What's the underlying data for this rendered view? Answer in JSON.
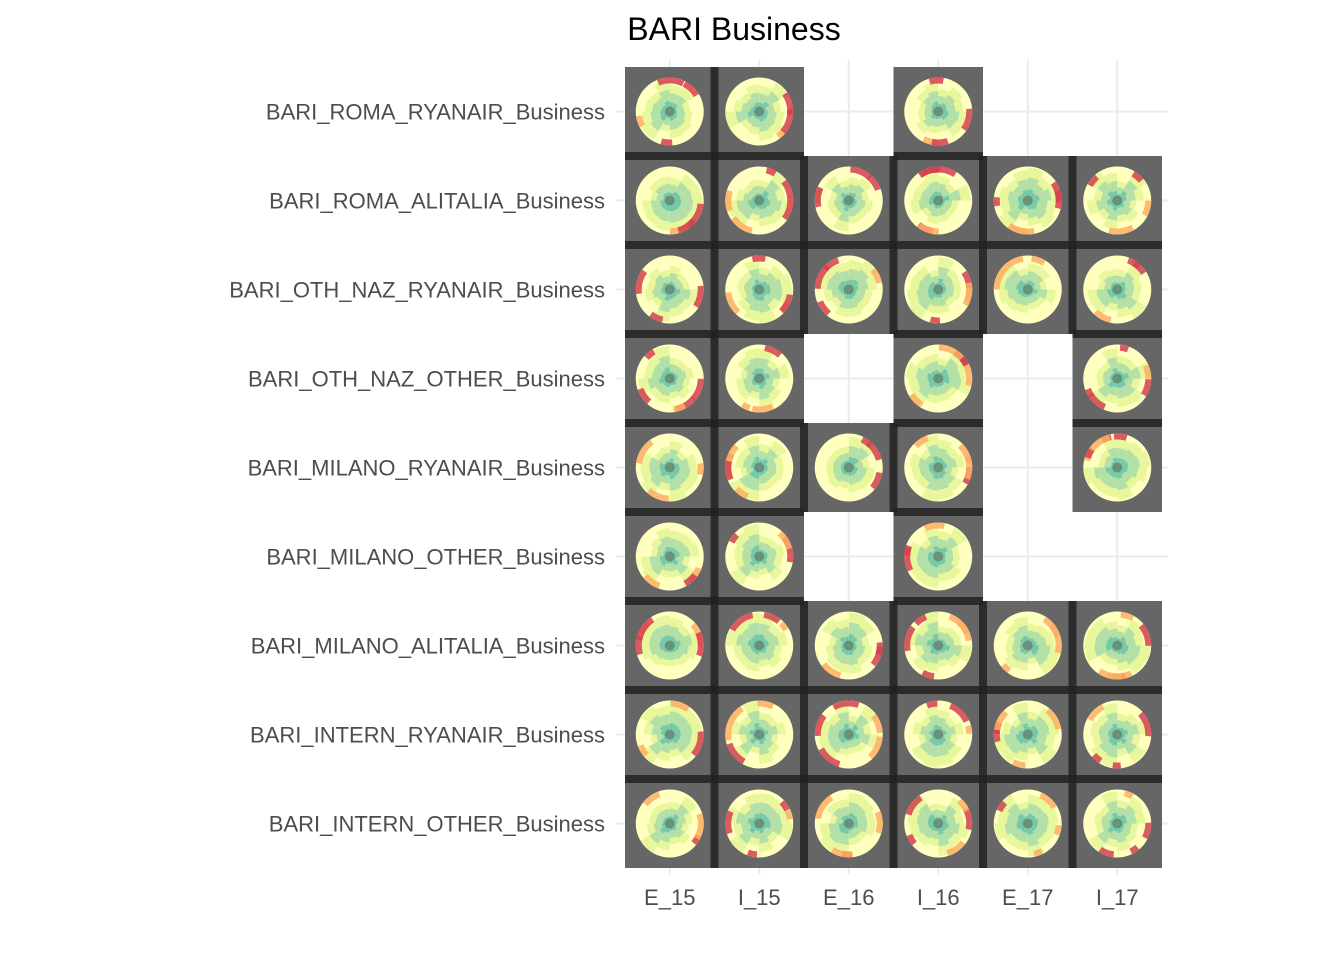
{
  "chart_data": {
    "type": "heatmap",
    "title": "BARI Business",
    "xlabel": "",
    "ylabel": "",
    "x_categories": [
      "E_15",
      "I_15",
      "E_16",
      "I_16",
      "E_17",
      "I_17"
    ],
    "y_categories": [
      "BARI_ROMA_RYANAIR_Business",
      "BARI_ROMA_ALITALIA_Business",
      "BARI_OTH_NAZ_RYANAIR_Business",
      "BARI_OTH_NAZ_OTHER_Business",
      "BARI_MILANO_RYANAIR_Business",
      "BARI_MILANO_OTHER_Business",
      "BARI_MILANO_ALITALIA_Business",
      "BARI_INTERN_RYANAIR_Business",
      "BARI_INTERN_OTHER_Business"
    ],
    "tile_fill": "#666666",
    "grid": true,
    "legend": "none",
    "palette": [
      "#d53e4f",
      "#f46d43",
      "#fdae61",
      "#fee08b",
      "#ffffbf",
      "#e6f598",
      "#abdda4",
      "#66c2a5"
    ],
    "present": [
      [
        1,
        1,
        0,
        1,
        0,
        0
      ],
      [
        1,
        1,
        1,
        1,
        1,
        1
      ],
      [
        1,
        1,
        1,
        1,
        1,
        1
      ],
      [
        1,
        1,
        0,
        1,
        0,
        1
      ],
      [
        1,
        1,
        1,
        1,
        0,
        1
      ],
      [
        1,
        1,
        0,
        1,
        0,
        0
      ],
      [
        1,
        1,
        1,
        1,
        1,
        1
      ],
      [
        1,
        1,
        1,
        1,
        1,
        1
      ],
      [
        1,
        1,
        1,
        1,
        1,
        1
      ]
    ]
  }
}
